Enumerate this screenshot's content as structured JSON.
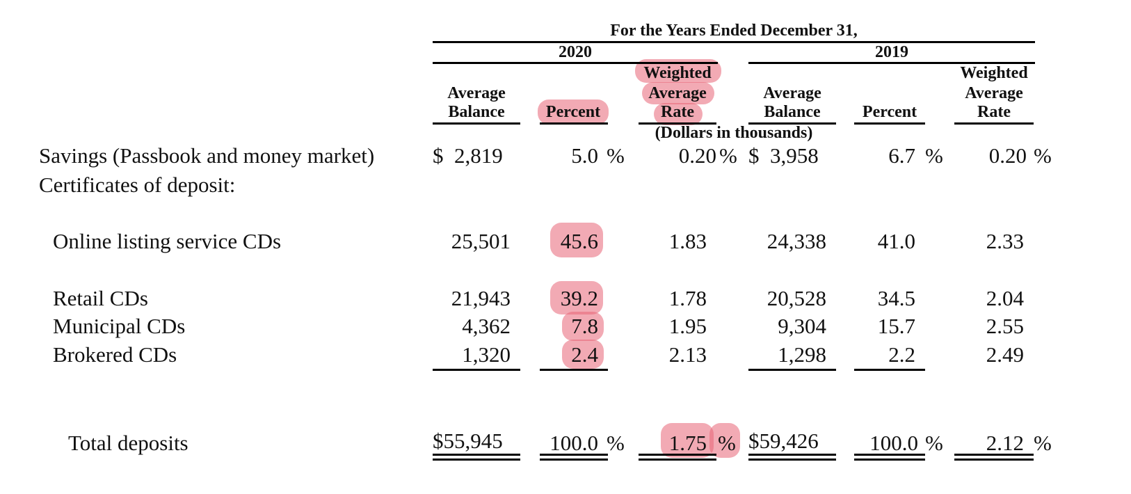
{
  "title": "For the Years Ended December 31,",
  "units": "(Dollars in thousands)",
  "highlight_color": "#e86476",
  "periods": [
    "2020",
    "2019"
  ],
  "columns": {
    "avg_balance": [
      "Average",
      "Balance"
    ],
    "percent": "Percent",
    "rate": [
      "Weighted",
      "Average",
      "Rate"
    ]
  },
  "rows": {
    "savings": {
      "label": "Savings (Passbook and money market)",
      "b20": "$  2,819",
      "p20": "5.0",
      "p20_unit": "%",
      "r20": "0.20",
      "r20_unit": "%",
      "b19": "$  3,958",
      "p19": "6.7",
      "p19_unit": "%",
      "r19": "0.20",
      "r19_unit": "%"
    },
    "cd_header": {
      "label": "Certificates of deposit:"
    },
    "online": {
      "label": "Online listing service CDs",
      "b20": "25,501",
      "p20": "45.6",
      "r20": "1.83",
      "b19": "24,338",
      "p19": "41.0",
      "r19": "2.33"
    },
    "retail": {
      "label": "Retail CDs",
      "b20": "21,943",
      "p20": "39.2",
      "r20": "1.78",
      "b19": "20,528",
      "p19": "34.5",
      "r19": "2.04"
    },
    "municipal": {
      "label": "Municipal CDs",
      "b20": "4,362",
      "p20": "7.8",
      "r20": "1.95",
      "b19": "9,304",
      "p19": "15.7",
      "r19": "2.55"
    },
    "brokered": {
      "label": "Brokered CDs",
      "b20": "1,320",
      "p20": "2.4",
      "r20": "2.13",
      "b19": "1,298",
      "p19": "2.2",
      "r19": "2.49"
    },
    "total": {
      "label": "Total deposits",
      "b20": "$55,945",
      "p20": "100.0",
      "p20_unit": "%",
      "r20": "1.75",
      "r20_unit": "%",
      "b19": "$59,426",
      "p19": "100.0",
      "p19_unit": "%",
      "r19": "2.12",
      "r19_unit": "%"
    }
  }
}
